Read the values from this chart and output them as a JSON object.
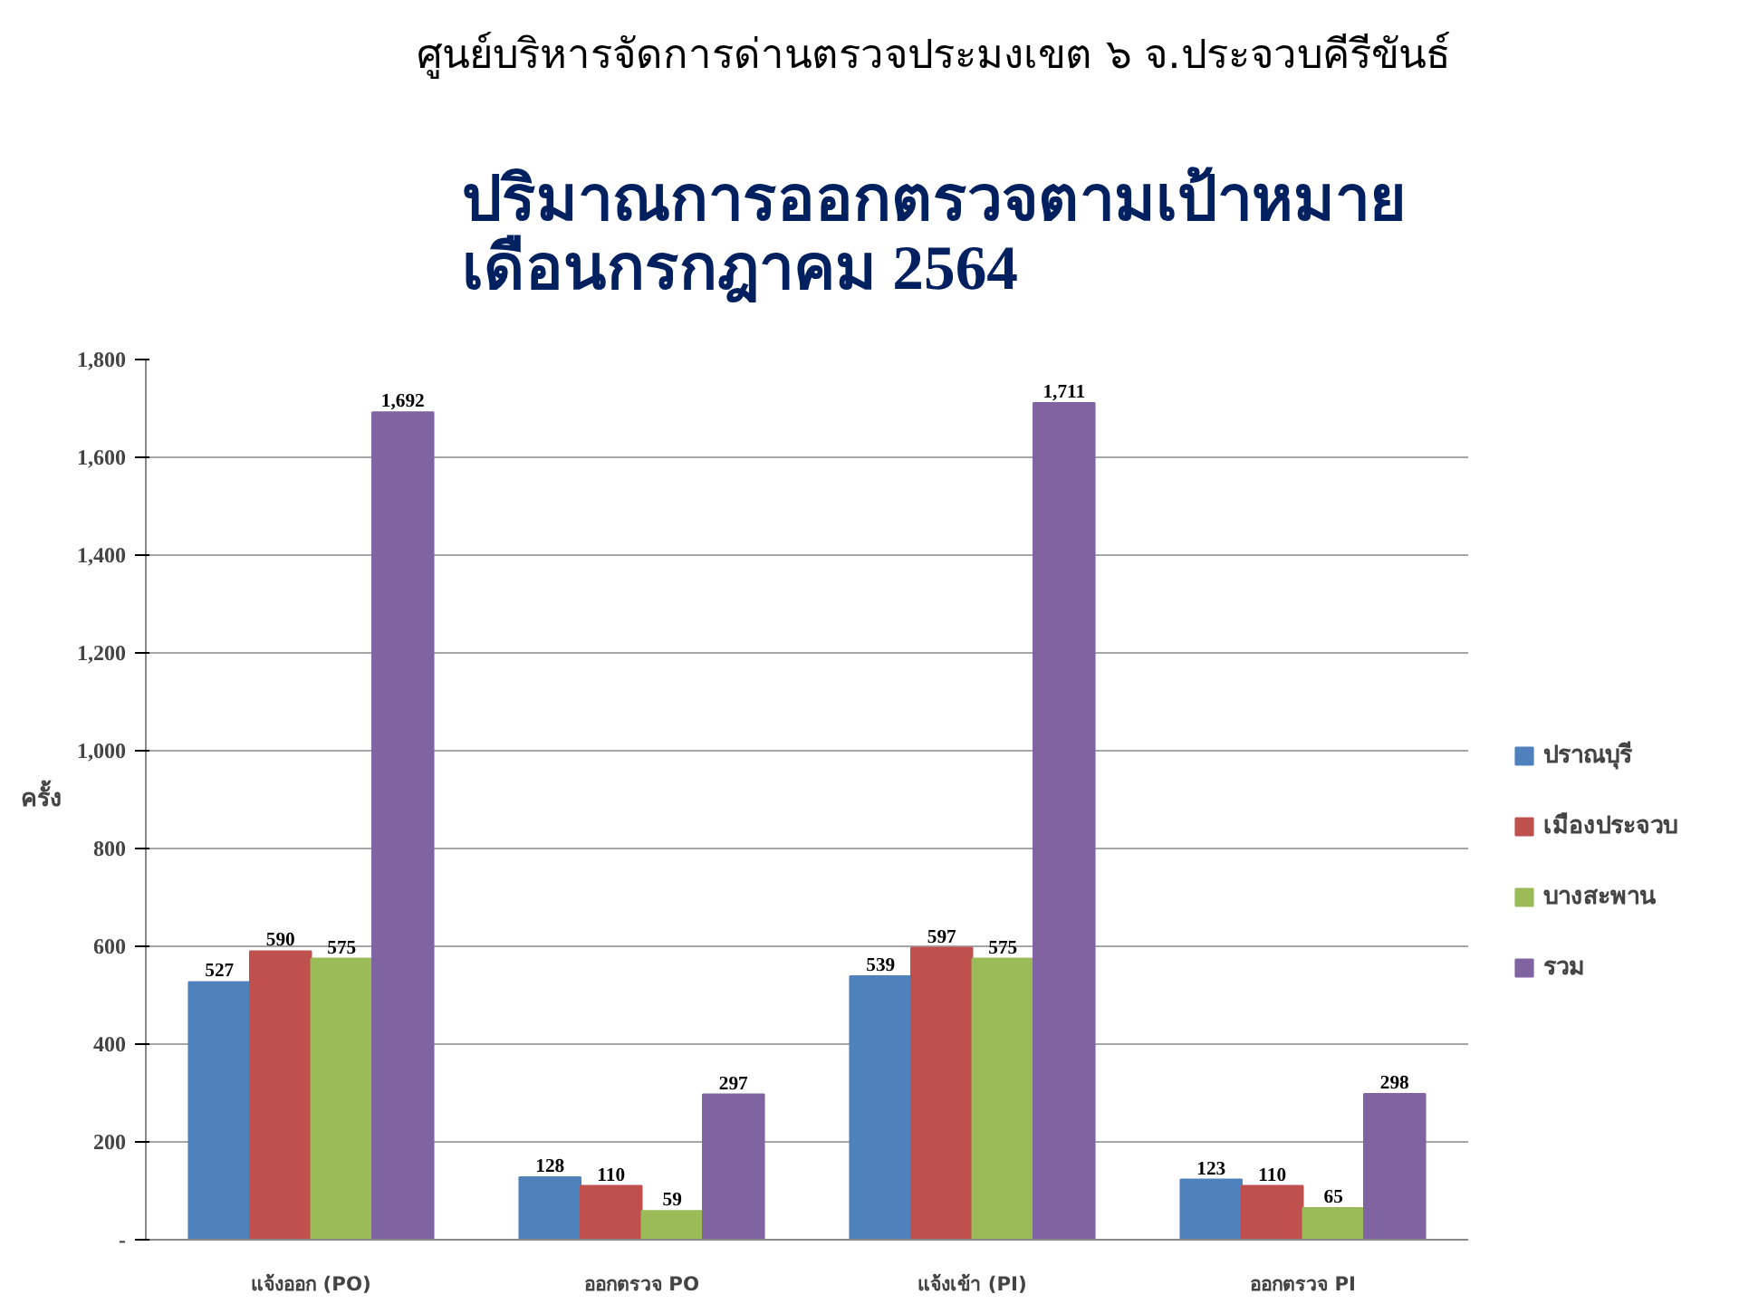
{
  "chart_data": {
    "type": "bar",
    "subtitle": "ศูนย์บริหารจัดการด่านตรวจประมงเขต ๖ จ.ประจวบคีรีขันธ์",
    "title": "ปริมาณการออกตรวจตามเป้าหมาย\nเดือนกรกฎาคม 2564",
    "ylabel": "ครั้ง",
    "categories": [
      "แจ้งออก (PO)",
      "ออกตรวจ PO",
      "แจ้งเข้า (PI)",
      "ออกตรวจ PI"
    ],
    "series": [
      {
        "name": "ปราณบุรี",
        "color": "#4f81bd",
        "values": [
          527,
          128,
          539,
          123
        ],
        "value_labels": [
          "527",
          "128",
          "539",
          "123"
        ]
      },
      {
        "name": "เมืองประจวบ",
        "color": "#c0504d",
        "values": [
          590,
          110,
          597,
          110
        ],
        "value_labels": [
          "590",
          "110",
          "597",
          "110"
        ]
      },
      {
        "name": "บางสะพาน",
        "color": "#9bbb59",
        "values": [
          575,
          59,
          575,
          65
        ],
        "value_labels": [
          "575",
          "59",
          "575",
          "65"
        ]
      },
      {
        "name": "รวม",
        "color": "#8064a2",
        "values": [
          1692,
          297,
          1711,
          298
        ],
        "value_labels": [
          "1,692",
          "297",
          "1,711",
          "298"
        ]
      }
    ],
    "ylim": [
      0,
      1800
    ],
    "yticks": [
      {
        "value": 0,
        "label": "-"
      },
      200,
      400,
      600,
      800,
      {
        "value": 1000,
        "label": "1,000"
      },
      {
        "value": 1200,
        "label": "1,200"
      },
      {
        "value": 1400,
        "label": "1,400"
      },
      {
        "value": 1600,
        "label": "1,600"
      },
      {
        "value": 1800,
        "label": "1,800"
      }
    ],
    "grid": "y",
    "legend": "right"
  }
}
